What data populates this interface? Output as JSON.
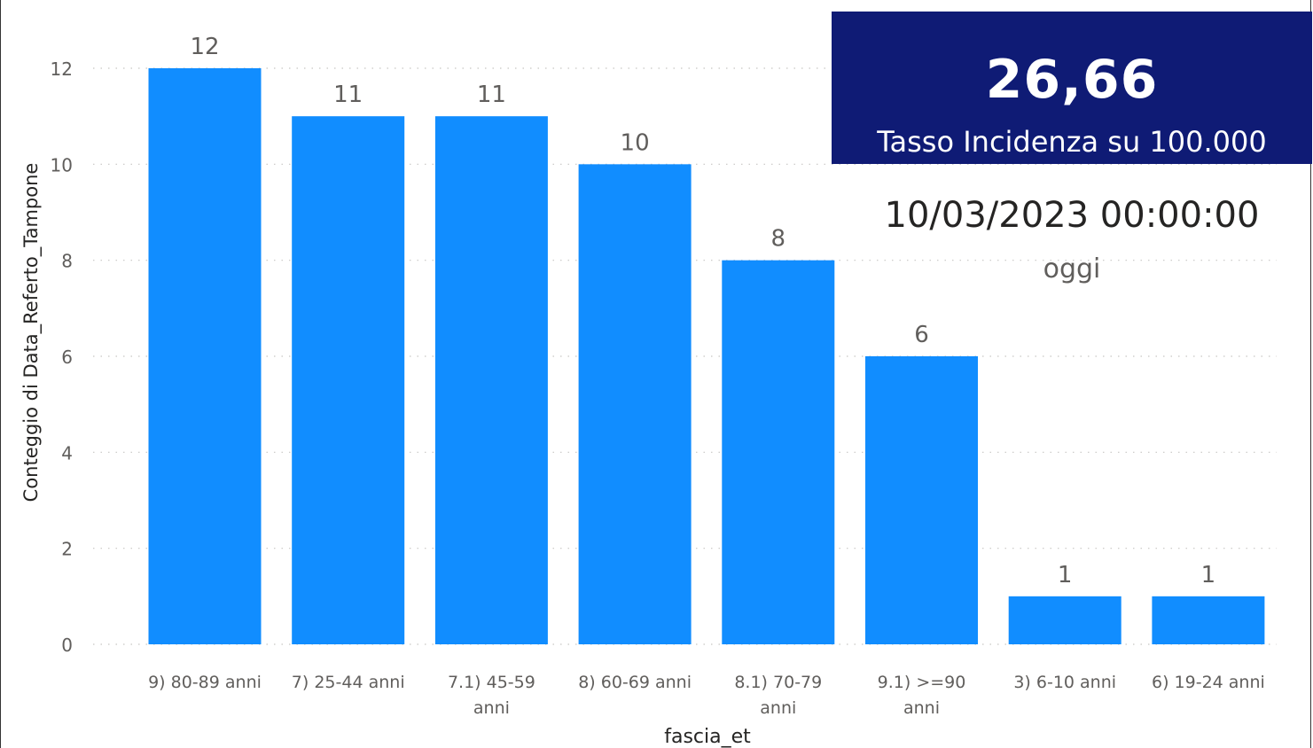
{
  "chart_data": {
    "type": "bar",
    "categories": [
      "9) 80-89 anni",
      "7) 25-44 anni",
      "7.1) 45-59 anni",
      "8) 60-69 anni",
      "8.1) 70-79 anni",
      "9.1) >=90 anni",
      "3) 6-10 anni",
      "6) 19-24 anni"
    ],
    "category_lines": [
      [
        "9) 80-89 anni"
      ],
      [
        "7) 25-44 anni"
      ],
      [
        "7.1) 45-59",
        "anni"
      ],
      [
        "8) 60-69 anni"
      ],
      [
        "8.1) 70-79",
        "anni"
      ],
      [
        "9.1) >=90",
        "anni"
      ],
      [
        "3) 6-10 anni"
      ],
      [
        "6) 19-24 anni"
      ]
    ],
    "values": [
      12,
      11,
      11,
      10,
      8,
      6,
      1,
      1
    ],
    "title": "",
    "xlabel": "fascia_et",
    "ylabel": "Conteggio di Data_Referto_Tampone",
    "ylim": [
      0,
      12
    ],
    "yticks": [
      0,
      2,
      4,
      6,
      8,
      10,
      12
    ],
    "grid": true,
    "bar_color": "#118dff",
    "data_labels": true
  },
  "kpi": {
    "value": "26,66",
    "label": "Tasso Incidenza su 100.000",
    "background": "#0f1b75"
  },
  "date_card": {
    "value": "10/03/2023 00:00:00",
    "label": "oggi"
  }
}
